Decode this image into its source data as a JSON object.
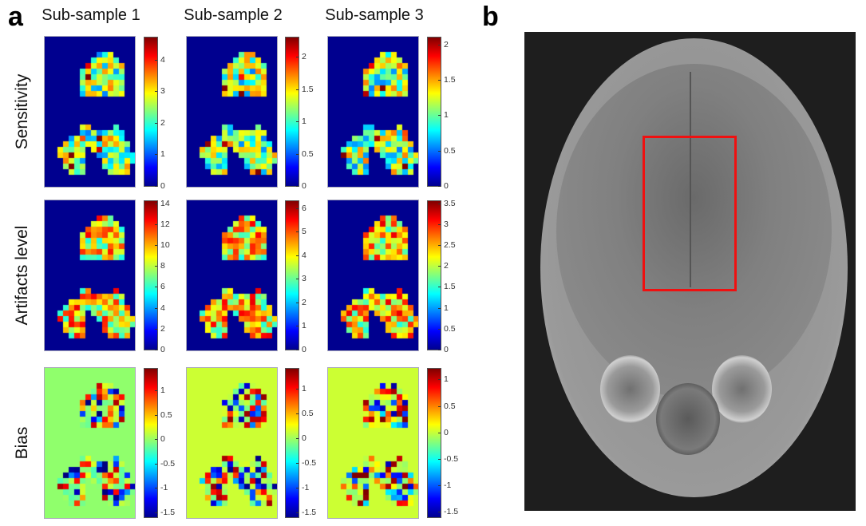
{
  "panel_labels": {
    "a": "a",
    "b": "b"
  },
  "columns": [
    "Sub-sample 1",
    "Sub-sample 2",
    "Sub-sample 3"
  ],
  "rows": [
    "Sensitivity",
    "Artifacts level",
    "Bias"
  ],
  "colormap": "jet",
  "colors": {
    "map_background": "#00008f",
    "bias_background_1": "#90ff6c",
    "bias_background_2": "#ccff33",
    "roi_box": "#f01010"
  },
  "chart_data": [
    {
      "type": "heatmap",
      "row": "Sensitivity",
      "column": "Sub-sample 1",
      "range": [
        0,
        4.7
      ],
      "ticks": [
        "0",
        "1",
        "2",
        "3",
        "4"
      ],
      "tick_values": [
        0,
        1,
        2,
        3,
        4
      ]
    },
    {
      "type": "heatmap",
      "row": "Sensitivity",
      "column": "Sub-sample 2",
      "range": [
        0,
        2.3
      ],
      "ticks": [
        "0",
        "0.5",
        "1",
        "1.5",
        "2"
      ],
      "tick_values": [
        0,
        0.5,
        1,
        1.5,
        2
      ]
    },
    {
      "type": "heatmap",
      "row": "Sensitivity",
      "column": "Sub-sample 3",
      "range": [
        0,
        2.1
      ],
      "ticks": [
        "0",
        "0.5",
        "1",
        "1.5",
        "2"
      ],
      "tick_values": [
        0,
        0.5,
        1,
        1.5,
        2
      ]
    },
    {
      "type": "heatmap",
      "row": "Artifacts level",
      "column": "Sub-sample 1",
      "range": [
        0,
        14.2
      ],
      "ticks": [
        "0",
        "2",
        "4",
        "6",
        "8",
        "10",
        "12",
        "14"
      ],
      "tick_values": [
        0,
        2,
        4,
        6,
        8,
        10,
        12,
        14
      ]
    },
    {
      "type": "heatmap",
      "row": "Artifacts level",
      "column": "Sub-sample 2",
      "range": [
        0,
        6.3
      ],
      "ticks": [
        "0",
        "1",
        "2",
        "3",
        "4",
        "5",
        "6"
      ],
      "tick_values": [
        0,
        1,
        2,
        3,
        4,
        5,
        6
      ]
    },
    {
      "type": "heatmap",
      "row": "Artifacts level",
      "column": "Sub-sample 3",
      "range": [
        0,
        3.55
      ],
      "ticks": [
        "0",
        "0.5",
        "1",
        "1.5",
        "2",
        "2.5",
        "3",
        "3.5"
      ],
      "tick_values": [
        0,
        0.5,
        1,
        1.5,
        2,
        2.5,
        3,
        3.5
      ]
    },
    {
      "type": "heatmap",
      "row": "Bias",
      "column": "Sub-sample 1",
      "range": [
        -1.6,
        1.45
      ],
      "ticks": [
        "-1.5",
        "-1",
        "-0.5",
        "0",
        "0.5",
        "1"
      ],
      "tick_values": [
        -1.5,
        -1,
        -0.5,
        0,
        0.5,
        1
      ]
    },
    {
      "type": "heatmap",
      "row": "Bias",
      "column": "Sub-sample 2",
      "range": [
        -1.6,
        1.4
      ],
      "ticks": [
        "-1.5",
        "-1",
        "-0.5",
        "0",
        "0.5",
        "1"
      ],
      "tick_values": [
        -1.5,
        -1,
        -0.5,
        0,
        0.5,
        1
      ]
    },
    {
      "type": "heatmap",
      "row": "Bias",
      "column": "Sub-sample 3",
      "range": [
        -1.6,
        1.2
      ],
      "ticks": [
        "-1.5",
        "-1",
        "-0.5",
        "0",
        "0.5",
        "1"
      ],
      "tick_values": [
        -1.5,
        -1,
        -0.5,
        0,
        0.5,
        1
      ]
    }
  ]
}
